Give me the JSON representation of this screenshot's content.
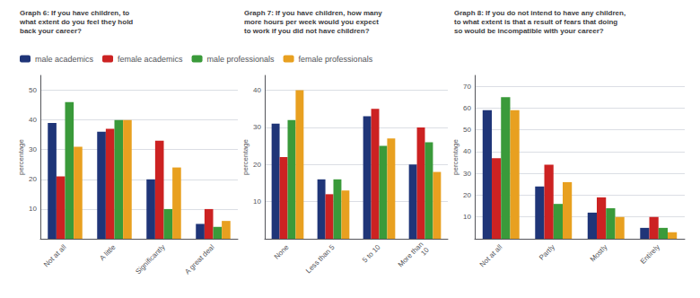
{
  "chart_data": [
    {
      "type": "bar",
      "title": "Graph 6: If you have children, to\nwhat extent do you feel they hold\nback your career?",
      "categories": [
        "Not at all",
        "A little",
        "Significantly",
        "A great deal"
      ],
      "series": [
        {
          "name": "male academics",
          "color": "#1f3578",
          "values": [
            39,
            36,
            20,
            5
          ]
        },
        {
          "name": "female academics",
          "color": "#cc2222",
          "values": [
            21,
            37,
            33,
            10
          ]
        },
        {
          "name": "male professionals",
          "color": "#3a9a3a",
          "values": [
            46,
            40,
            10,
            4
          ]
        },
        {
          "name": "female professionals",
          "color": "#e8a020",
          "values": [
            31,
            40,
            24,
            6
          ]
        }
      ],
      "ylabel": "percentage",
      "ylim": [
        0,
        55
      ],
      "yticks": [
        {
          "value": 0,
          "label": null
        },
        10,
        20,
        30,
        40,
        50
      ],
      "grid": true,
      "legend": "upper left"
    },
    {
      "type": "bar",
      "title": "Graph 7: If you have children, how many\nmore hours per week would you expect\nto work if you did not have children?",
      "categories": [
        "None",
        "Less than 5",
        "5 to 10",
        "More than\n10"
      ],
      "series": [
        {
          "name": "male academics",
          "color": "#1f3578",
          "values": [
            31,
            16,
            33,
            20
          ]
        },
        {
          "name": "female academics",
          "color": "#cc2222",
          "values": [
            22,
            12,
            35,
            30
          ]
        },
        {
          "name": "male professionals",
          "color": "#3a9a3a",
          "values": [
            32,
            16,
            25,
            26
          ]
        },
        {
          "name": "female professionals",
          "color": "#e8a020",
          "values": [
            40,
            13,
            27,
            18
          ]
        }
      ],
      "ylabel": "percentage",
      "ylim": [
        0,
        44
      ],
      "yticks": [
        {
          "value": 0,
          "label": null
        },
        10,
        20,
        30,
        40
      ],
      "grid": true
    },
    {
      "type": "bar",
      "title": "Graph 8: If you do not intend to have any children,\nto what extent is that a result of fears that doing\nso would be incompatible with your career?",
      "categories": [
        "Not at all",
        "Partly",
        "Mostly",
        "Entirely"
      ],
      "series": [
        {
          "name": "male academics",
          "color": "#1f3578",
          "values": [
            59,
            24,
            12,
            5
          ]
        },
        {
          "name": "female academics",
          "color": "#cc2222",
          "values": [
            37,
            34,
            19,
            10
          ]
        },
        {
          "name": "male professionals",
          "color": "#3a9a3a",
          "values": [
            65,
            16,
            14,
            5
          ]
        },
        {
          "name": "female professionals",
          "color": "#e8a020",
          "values": [
            59,
            26,
            10,
            3
          ]
        }
      ],
      "ylabel": "percentage",
      "ylim": [
        0,
        75
      ],
      "yticks": [
        {
          "value": 0,
          "label": null
        },
        10,
        20,
        30,
        40,
        50,
        60,
        70
      ],
      "grid": true
    }
  ]
}
